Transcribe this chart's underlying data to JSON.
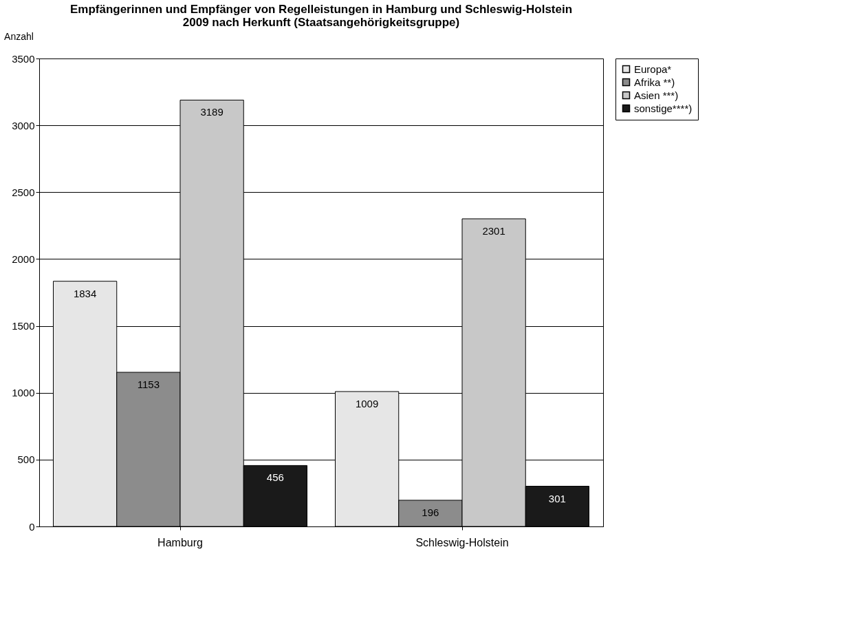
{
  "chart_data": {
    "type": "bar",
    "title": "Empfängerinnen und Empfänger von Regelleistungen in Hamburg und Schleswig-Holstein 2009 nach Herkunft (Staatsangehörigkeitsgruppe)",
    "ylabel": "Anzahl",
    "categories": [
      "Hamburg",
      "Schleswig-Holstein"
    ],
    "series": [
      {
        "name": "Europa*",
        "color": "#e6e6e6",
        "values": [
          1834,
          1009
        ]
      },
      {
        "name": "Afrika **)",
        "color": "#8c8c8c",
        "values": [
          1153,
          196
        ]
      },
      {
        "name": "Asien ***)",
        "color": "#c8c8c8",
        "values": [
          3189,
          2301
        ]
      },
      {
        "name": "sonstige****)",
        "color": "#1a1a1a",
        "values": [
          456,
          301
        ]
      }
    ],
    "ylim": [
      0,
      3500
    ],
    "yticks": [
      0,
      500,
      1000,
      1500,
      2000,
      2500,
      3000,
      3500
    ],
    "grid": "y",
    "legend": "right",
    "data_labels": true
  }
}
